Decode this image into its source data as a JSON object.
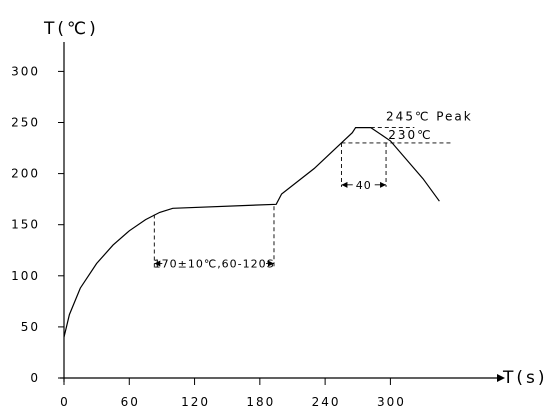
{
  "chart_data": {
    "type": "line",
    "title": "",
    "ylabel": "T(℃)",
    "xlabel": "T(s)",
    "xlim": [
      0,
      355
    ],
    "ylim": [
      0,
      330
    ],
    "x_ticks": [
      0,
      60,
      120,
      180,
      240,
      300
    ],
    "y_ticks": [
      0,
      50,
      100,
      150,
      200,
      250,
      300
    ],
    "x_tick_labels": [
      "0",
      "60",
      "120",
      "180",
      "240",
      "300"
    ],
    "y_tick_labels": [
      "0",
      "50",
      "100",
      "150",
      "200",
      "250",
      "300"
    ],
    "grid": false,
    "series": [
      {
        "x": [
          0,
          5,
          15,
          30,
          45,
          60,
          75,
          88,
          100,
          195,
          200,
          230,
          255,
          265,
          268,
          282,
          300,
          330,
          345
        ],
        "y": [
          40,
          62,
          88,
          112,
          130,
          144,
          155,
          162,
          166,
          170,
          180,
          205,
          230,
          240,
          245,
          245,
          232,
          195,
          173
        ]
      }
    ],
    "annotations": {
      "peak_label": "245℃ Peak",
      "level_label": "230℃",
      "soak_label": "170±10℃,60-120S",
      "window_label": "40"
    }
  }
}
